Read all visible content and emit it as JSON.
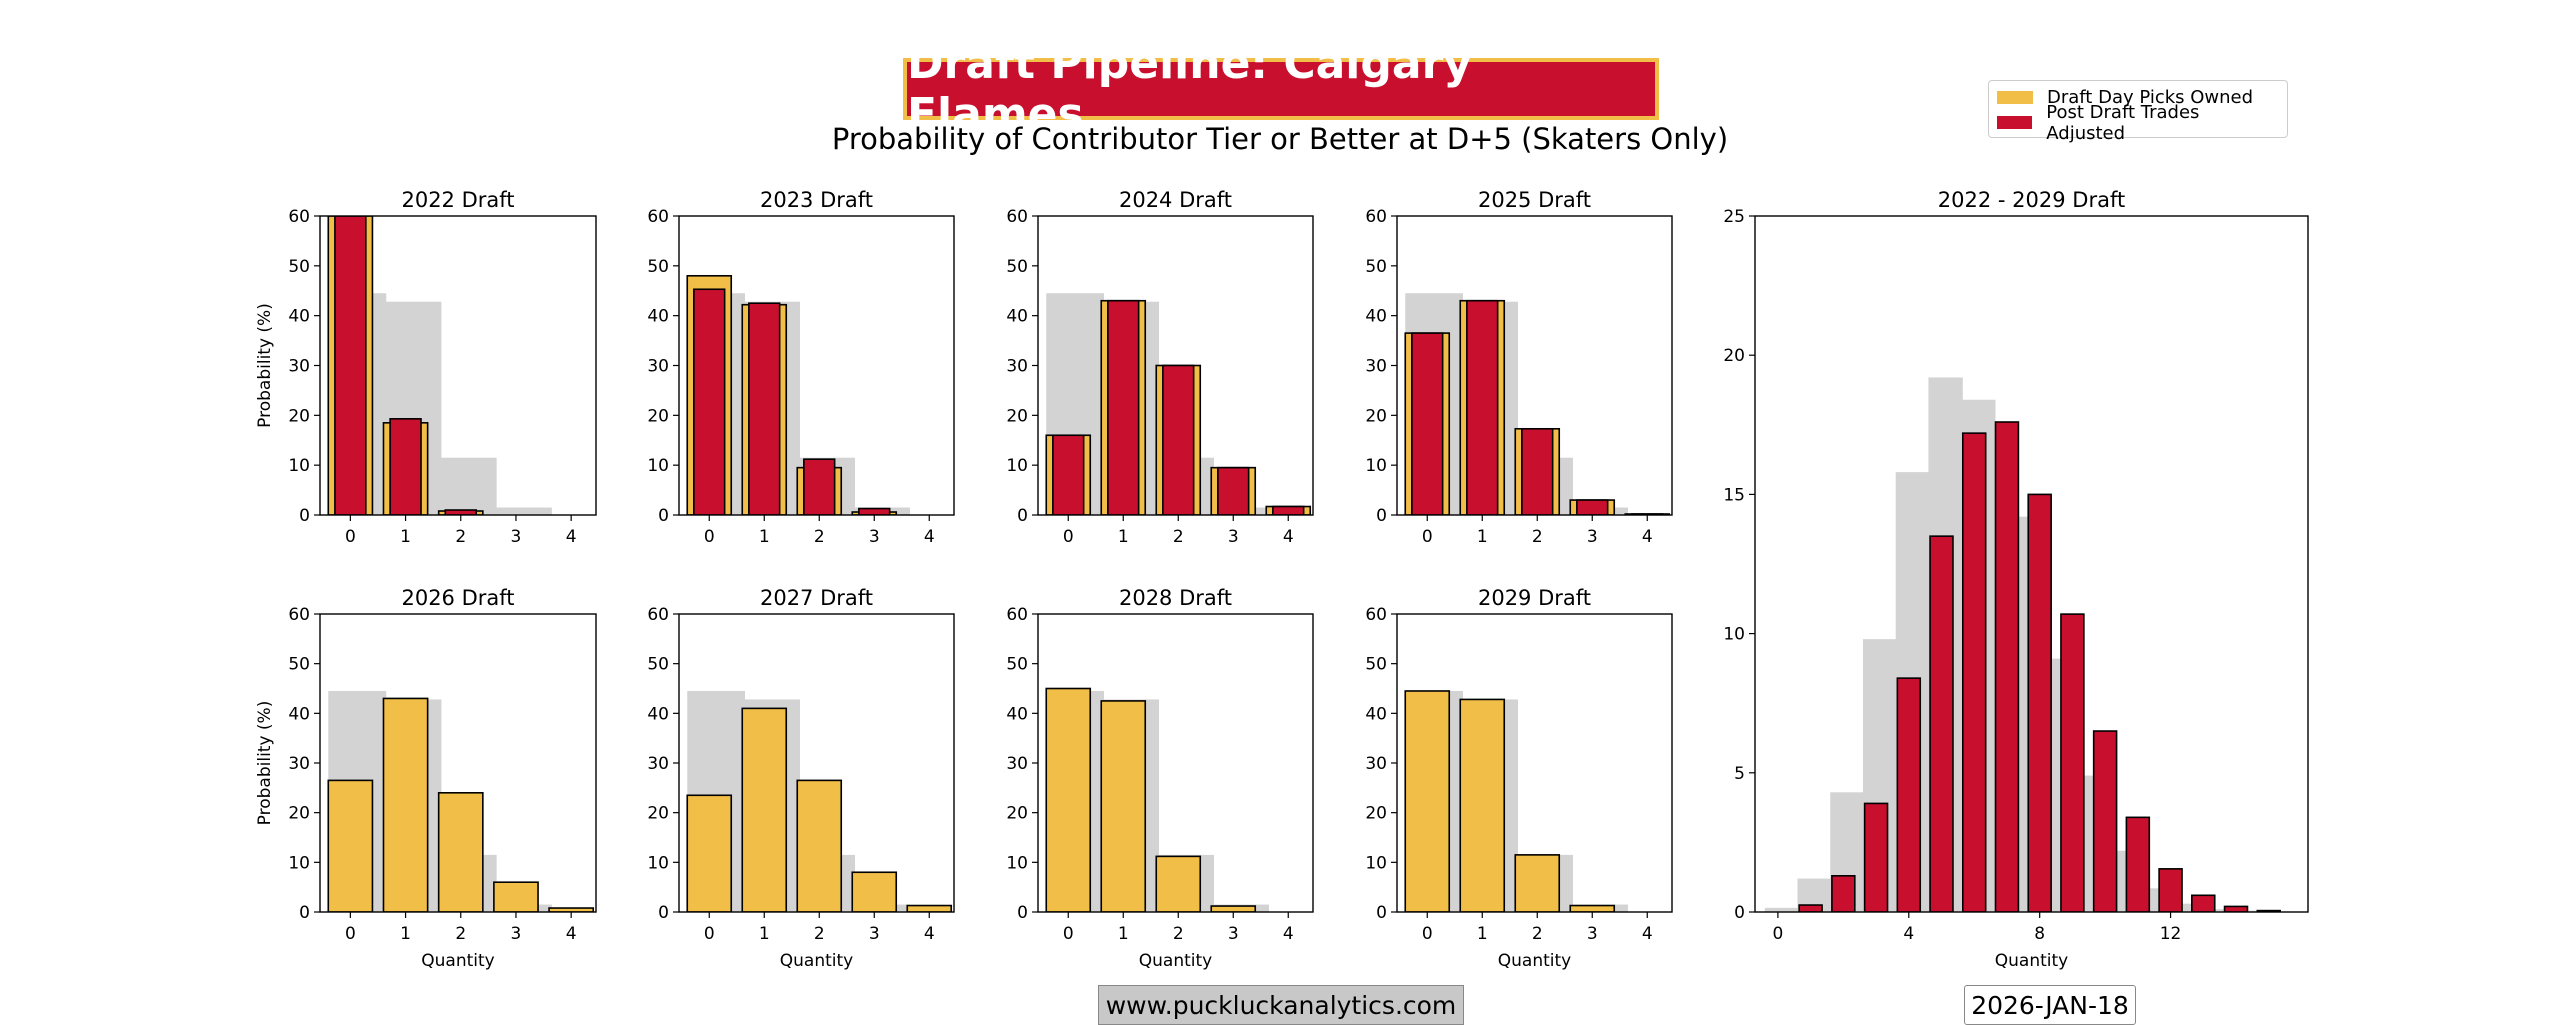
{
  "title": "Draft Pipeline: Calgary Flames",
  "subtitle": "Probability of Contributor Tier or Better at D+5 (Skaters Only)",
  "source": "www.puckluckanalytics.com",
  "date": "2026-JAN-18",
  "colors": {
    "owned": "#F1BE48",
    "adjusted": "#C8102E",
    "baseline": "#d3d3d3",
    "edge": "#000000"
  },
  "legend": [
    {
      "label": "Draft Day Picks Owned",
      "color": "#F1BE48"
    },
    {
      "label": "Post Draft Trades Adjusted",
      "color": "#C8102E"
    }
  ],
  "chart_data": [
    {
      "type": "bar",
      "title": "2022 Draft",
      "ylabel": "Probability (%)",
      "xlabel": "",
      "ylim": [
        0,
        60
      ],
      "yticks": [
        0,
        10,
        20,
        30,
        40,
        50,
        60
      ],
      "categories": [
        0,
        1,
        2,
        3,
        4
      ],
      "series": [
        {
          "name": "Draft Day Picks Owned",
          "values": [
            60,
            18.5,
            0.8,
            0,
            0
          ]
        },
        {
          "name": "Post Draft Trades Adjusted",
          "values": [
            60,
            19.3,
            1.0,
            0,
            0
          ]
        }
      ],
      "baseline": [
        44.5,
        42.8,
        11.5,
        1.5,
        0
      ]
    },
    {
      "type": "bar",
      "title": "2023 Draft",
      "ylabel": "",
      "xlabel": "",
      "ylim": [
        0,
        60
      ],
      "yticks": [
        0,
        10,
        20,
        30,
        40,
        50,
        60
      ],
      "categories": [
        0,
        1,
        2,
        3,
        4
      ],
      "series": [
        {
          "name": "Draft Day Picks Owned",
          "values": [
            48,
            42.2,
            9.5,
            0.6,
            0
          ]
        },
        {
          "name": "Post Draft Trades Adjusted",
          "values": [
            45.3,
            42.5,
            11.2,
            1.3,
            0
          ]
        }
      ],
      "baseline": [
        44.5,
        42.8,
        11.5,
        1.5,
        0
      ]
    },
    {
      "type": "bar",
      "title": "2024 Draft",
      "ylabel": "",
      "xlabel": "",
      "ylim": [
        0,
        60
      ],
      "yticks": [
        0,
        10,
        20,
        30,
        40,
        50,
        60
      ],
      "categories": [
        0,
        1,
        2,
        3,
        4
      ],
      "series": [
        {
          "name": "Draft Day Picks Owned",
          "values": [
            16,
            43,
            30,
            9.5,
            1.7
          ]
        },
        {
          "name": "Post Draft Trades Adjusted",
          "values": [
            16,
            43,
            30,
            9.5,
            1.7
          ]
        }
      ],
      "baseline": [
        44.5,
        42.8,
        11.5,
        1.5,
        0
      ]
    },
    {
      "type": "bar",
      "title": "2025 Draft",
      "ylabel": "",
      "xlabel": "",
      "ylim": [
        0,
        60
      ],
      "yticks": [
        0,
        10,
        20,
        30,
        40,
        50,
        60
      ],
      "categories": [
        0,
        1,
        2,
        3,
        4
      ],
      "series": [
        {
          "name": "Draft Day Picks Owned",
          "values": [
            36.5,
            43,
            17.3,
            3,
            0.2
          ]
        },
        {
          "name": "Post Draft Trades Adjusted",
          "values": [
            36.5,
            43,
            17.3,
            3,
            0.2
          ]
        }
      ],
      "baseline": [
        44.5,
        42.8,
        11.5,
        1.5,
        0
      ]
    },
    {
      "type": "bar",
      "title": "2026 Draft",
      "ylabel": "Probability (%)",
      "xlabel": "Quantity",
      "ylim": [
        0,
        60
      ],
      "yticks": [
        0,
        10,
        20,
        30,
        40,
        50,
        60
      ],
      "categories": [
        0,
        1,
        2,
        3,
        4
      ],
      "series": [
        {
          "name": "Draft Day Picks Owned",
          "values": [
            26.5,
            43,
            24,
            6,
            0.8
          ]
        }
      ],
      "baseline": [
        44.5,
        42.8,
        11.5,
        1.5,
        0
      ]
    },
    {
      "type": "bar",
      "title": "2027 Draft",
      "ylabel": "",
      "xlabel": "Quantity",
      "ylim": [
        0,
        60
      ],
      "yticks": [
        0,
        10,
        20,
        30,
        40,
        50,
        60
      ],
      "categories": [
        0,
        1,
        2,
        3,
        4
      ],
      "series": [
        {
          "name": "Draft Day Picks Owned",
          "values": [
            23.5,
            41,
            26.5,
            8,
            1.3
          ]
        }
      ],
      "baseline": [
        44.5,
        42.8,
        11.5,
        1.5,
        0
      ]
    },
    {
      "type": "bar",
      "title": "2028 Draft",
      "ylabel": "",
      "xlabel": "Quantity",
      "ylim": [
        0,
        60
      ],
      "yticks": [
        0,
        10,
        20,
        30,
        40,
        50,
        60
      ],
      "categories": [
        0,
        1,
        2,
        3,
        4
      ],
      "series": [
        {
          "name": "Draft Day Picks Owned",
          "values": [
            45,
            42.5,
            11.2,
            1.2,
            0
          ]
        }
      ],
      "baseline": [
        44.5,
        42.8,
        11.5,
        1.5,
        0
      ]
    },
    {
      "type": "bar",
      "title": "2029 Draft",
      "ylabel": "",
      "xlabel": "Quantity",
      "ylim": [
        0,
        60
      ],
      "yticks": [
        0,
        10,
        20,
        30,
        40,
        50,
        60
      ],
      "categories": [
        0,
        1,
        2,
        3,
        4
      ],
      "series": [
        {
          "name": "Draft Day Picks Owned",
          "values": [
            44.5,
            42.8,
            11.5,
            1.3,
            0
          ]
        }
      ],
      "baseline": [
        44.5,
        42.8,
        11.5,
        1.5,
        0
      ]
    },
    {
      "type": "bar",
      "title": "2022 - 2029 Draft",
      "ylabel": "",
      "xlabel": "Quantity",
      "ylim": [
        0,
        25
      ],
      "yticks": [
        0,
        5,
        10,
        15,
        20,
        25
      ],
      "xticks": [
        0,
        4,
        8,
        12
      ],
      "xlim": [
        -0.7,
        16.2
      ],
      "categories": [
        0,
        1,
        2,
        3,
        4,
        5,
        6,
        7,
        8,
        9,
        10,
        11,
        12,
        13,
        14,
        15
      ],
      "series": [
        {
          "name": "Post Draft Trades Adjusted",
          "values": [
            0,
            0.25,
            1.3,
            3.9,
            8.4,
            13.5,
            17.2,
            17.6,
            15,
            10.7,
            6.5,
            3.4,
            1.55,
            0.6,
            0.2,
            0.05
          ]
        }
      ],
      "baseline": [
        0.15,
        1.2,
        4.3,
        9.8,
        15.8,
        19.2,
        18.4,
        14.2,
        9.1,
        4.9,
        2.2,
        0.85,
        0.3,
        0.1,
        0.05,
        0
      ]
    }
  ]
}
